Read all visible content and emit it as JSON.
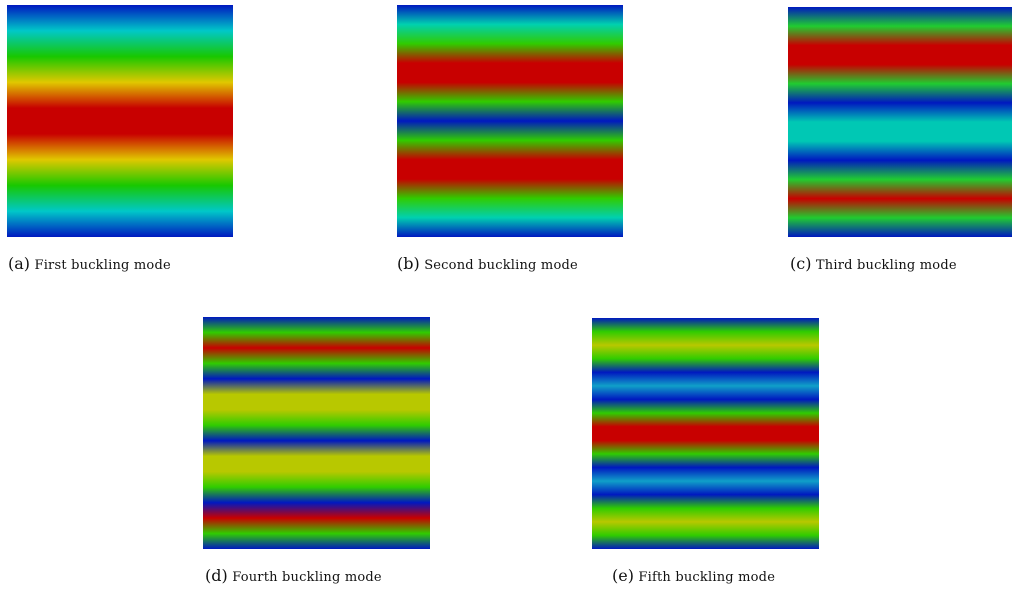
{
  "figure": {
    "panels": [
      {
        "id": "a",
        "tag": "(a)",
        "caption": "First buckling mode",
        "bands": [
          "#0018c0",
          "#00c8c8",
          "#18c800",
          "#e0c800",
          "#c80000",
          "#c80000",
          "#e0c800",
          "#18c800",
          "#00c8c8",
          "#0018c0"
        ]
      },
      {
        "id": "b",
        "tag": "(b)",
        "caption": "Second buckling mode",
        "bands": [
          "#0018c0",
          "#00d0b0",
          "#30cc00",
          "#c80000",
          "#c80000",
          "#30cc00",
          "#0018c0",
          "#30cc00",
          "#c80000",
          "#c80000",
          "#30cc00",
          "#00d0b0",
          "#0018c0"
        ]
      },
      {
        "id": "c",
        "tag": "(c)",
        "caption": "Third buckling mode",
        "bands": [
          "#0018c0",
          "#20cc30",
          "#c80000",
          "#c80000",
          "#20cc30",
          "#0018c0",
          "#00c8b4",
          "#00c8b4",
          "#0018c0",
          "#20cc30",
          "#c80000",
          "#20cc30",
          "#0018c0"
        ]
      },
      {
        "id": "d",
        "tag": "(d)",
        "caption": "Fourth buckling mode",
        "bands": [
          "#0018c0",
          "#30cc00",
          "#c80000",
          "#30cc00",
          "#0018c0",
          "#b8c800",
          "#b8c800",
          "#30cc00",
          "#0018c0",
          "#b8c800",
          "#b8c800",
          "#30cc00",
          "#0018c0",
          "#c80000",
          "#30cc00",
          "#0018c0"
        ]
      },
      {
        "id": "e",
        "tag": "(e)",
        "caption": "Fifth buckling mode",
        "bands": [
          "#0018c0",
          "#30cc00",
          "#b8c800",
          "#30cc00",
          "#0018c0",
          "#10a0c8",
          "#0018c0",
          "#30cc00",
          "#c80000",
          "#c80000",
          "#30cc00",
          "#0018c0",
          "#10a0c8",
          "#0018c0",
          "#30cc00",
          "#b8c800",
          "#30cc00",
          "#0018c0"
        ]
      }
    ]
  }
}
